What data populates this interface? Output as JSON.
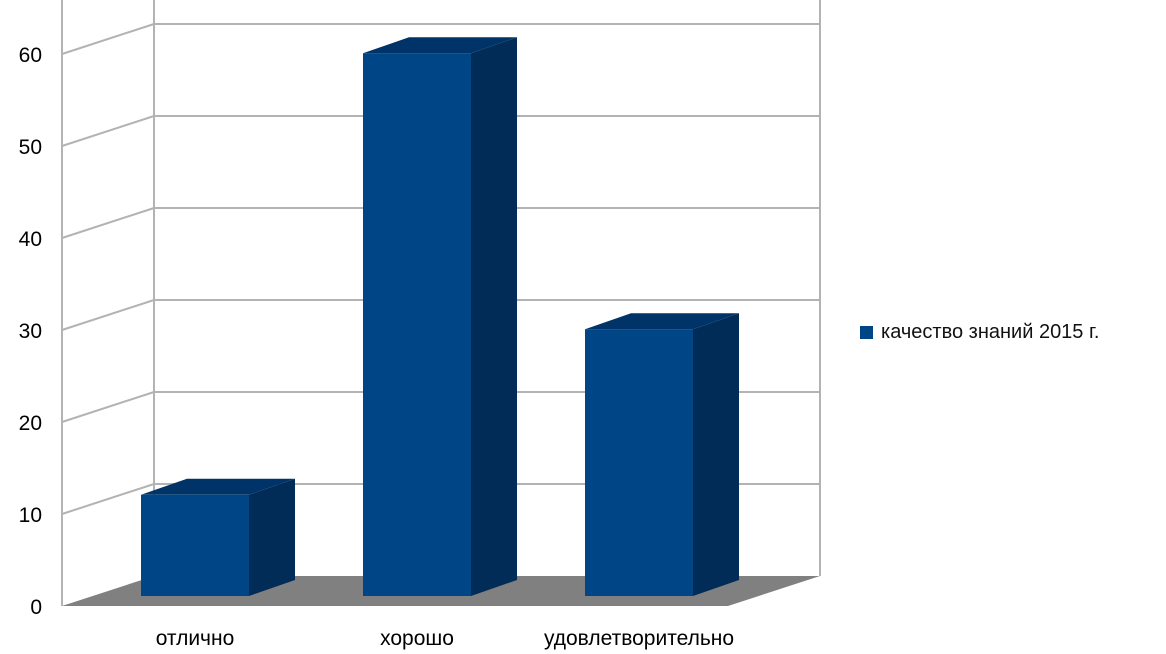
{
  "chart_data": {
    "type": "bar",
    "style": "3d-column",
    "categories": [
      "отлично",
      "хорошо",
      "удовлетворительно"
    ],
    "series": [
      {
        "name": "качество знаний 2015 г.",
        "values": [
          11,
          59,
          29
        ],
        "color": "#004586"
      }
    ],
    "y_ticks": [
      "0",
      "10",
      "20",
      "30",
      "40",
      "50",
      "60"
    ],
    "ylim": [
      0,
      70
    ],
    "grid": true,
    "legend_position": "right",
    "colors": {
      "bar_front": "#004586",
      "bar_side": "#002c57",
      "bar_top": "#003469",
      "floor": "#808080",
      "grid": "#b3b3b3",
      "axis_text": "#000000"
    }
  }
}
